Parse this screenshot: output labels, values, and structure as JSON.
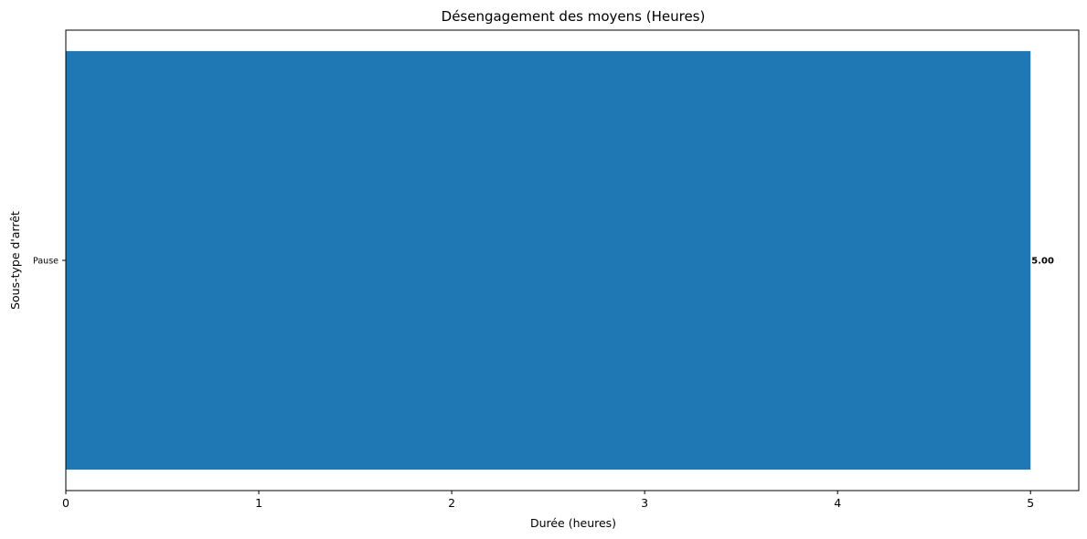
{
  "chart_data": {
    "type": "bar",
    "orientation": "horizontal",
    "title": "Désengagement des moyens (Heures)",
    "xlabel": "Durée (heures)",
    "ylabel": "Sous-type d'arrêt",
    "categories": [
      "Pause"
    ],
    "values": [
      5.0
    ],
    "data_labels": [
      "5.00"
    ],
    "xticks": [
      "0",
      "1",
      "2",
      "3",
      "4",
      "5"
    ],
    "xlim": [
      0,
      5.25
    ],
    "grid": false,
    "legend": "none",
    "bar_color": "#1f77b4"
  }
}
